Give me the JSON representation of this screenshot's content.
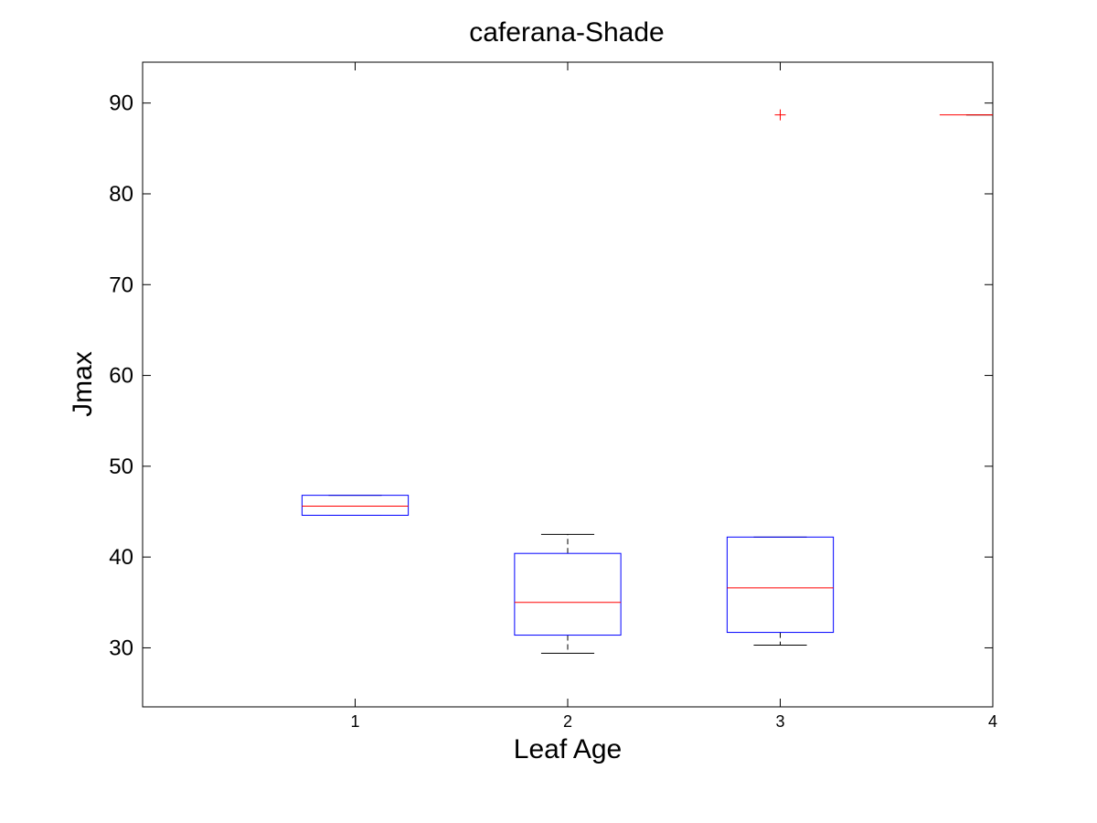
{
  "chart_data": {
    "type": "boxplot",
    "title": "caferana-Shade",
    "xlabel": "Leaf Age",
    "ylabel": "Jmax",
    "xlim": [
      0,
      4
    ],
    "ylim": [
      23.5,
      94.5
    ],
    "xticks": [
      "1",
      "2",
      "3",
      "4"
    ],
    "yticks": [
      30,
      40,
      50,
      60,
      70,
      80,
      90
    ],
    "grid": false,
    "box_color": "#0000ff",
    "median_color": "#ff0000",
    "whisker_color": "#000000",
    "outlier_color": "#ff0000",
    "boxes": [
      {
        "x": 1,
        "q1": 44.6,
        "median": 45.6,
        "q3": 46.8,
        "whisker_low": 44.6,
        "whisker_high": 46.8,
        "outliers": []
      },
      {
        "x": 2,
        "q1": 31.4,
        "median": 35.0,
        "q3": 40.4,
        "whisker_low": 29.4,
        "whisker_high": 42.5,
        "outliers": []
      },
      {
        "x": 3,
        "q1": 31.7,
        "median": 36.6,
        "q3": 42.2,
        "whisker_low": 30.3,
        "whisker_high": 42.2,
        "outliers": [
          88.7
        ]
      },
      {
        "x": 4,
        "q1": 88.7,
        "median": 88.7,
        "q3": 88.7,
        "whisker_low": 88.7,
        "whisker_high": 88.7,
        "outliers": []
      }
    ]
  }
}
